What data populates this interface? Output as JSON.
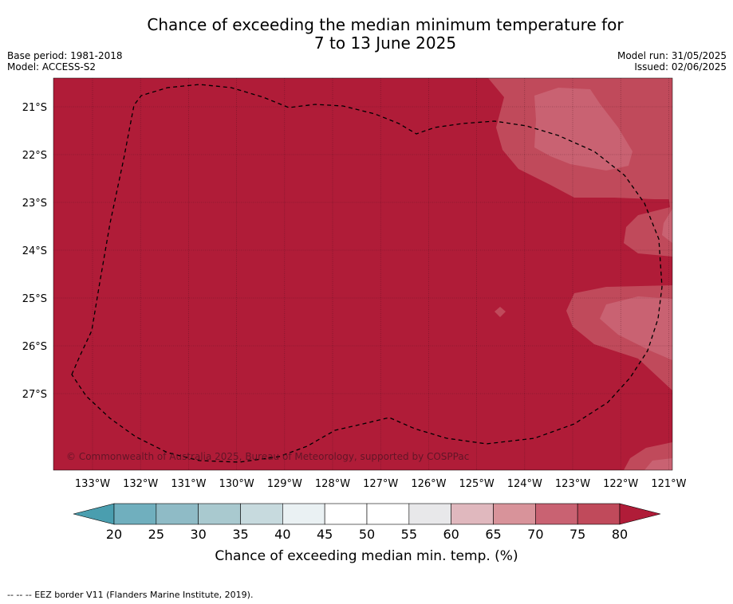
{
  "title": {
    "line1": "Chance of exceeding the median minimum temperature for",
    "line2": "7 to 13 June 2025"
  },
  "meta_left": {
    "base_period": "Base period: 1981-2018",
    "model": "Model: ACCESS-S2"
  },
  "meta_right": {
    "model_run": "Model run: 31/05/2025",
    "issued": "Issued: 02/06/2025"
  },
  "map": {
    "lat_labels": [
      "21°S",
      "22°S",
      "23°S",
      "24°S",
      "25°S",
      "26°S",
      "27°S"
    ],
    "lon_labels": [
      "133°W",
      "132°W",
      "131°W",
      "130°W",
      "129°W",
      "128°W",
      "127°W",
      "126°W",
      "125°W",
      "124°W",
      "123°W",
      "122°W",
      "121°W"
    ],
    "copyright": "© Commonwealth of Australia 2025, Bureau of Meteorology, supported by COSPPac",
    "category_colors": {
      "80_plus": "#b01c38",
      "75_80": "#c04a5b",
      "70_75": "#c96272",
      "65_70": "#d8939a"
    }
  },
  "colorbar": {
    "ticks": [
      "20",
      "25",
      "30",
      "35",
      "40",
      "45",
      "50",
      "55",
      "60",
      "65",
      "70",
      "75",
      "80"
    ],
    "colors": [
      "#70afbe",
      "#8fbbc6",
      "#a9c9cf",
      "#c7dade",
      "#eaf1f3",
      "#ffffff",
      "#ffffff",
      "#e8e8ea",
      "#e0b8be",
      "#d8939a",
      "#c96272",
      "#c04a5b"
    ],
    "low_extend_color": "#4a9eaf",
    "high_extend_color": "#b01c38",
    "label": "Chance of exceeding median min. temp. (%)"
  },
  "footnote": "--  --  -- EEZ border V11 (Flanders Marine Institute, 2019)."
}
